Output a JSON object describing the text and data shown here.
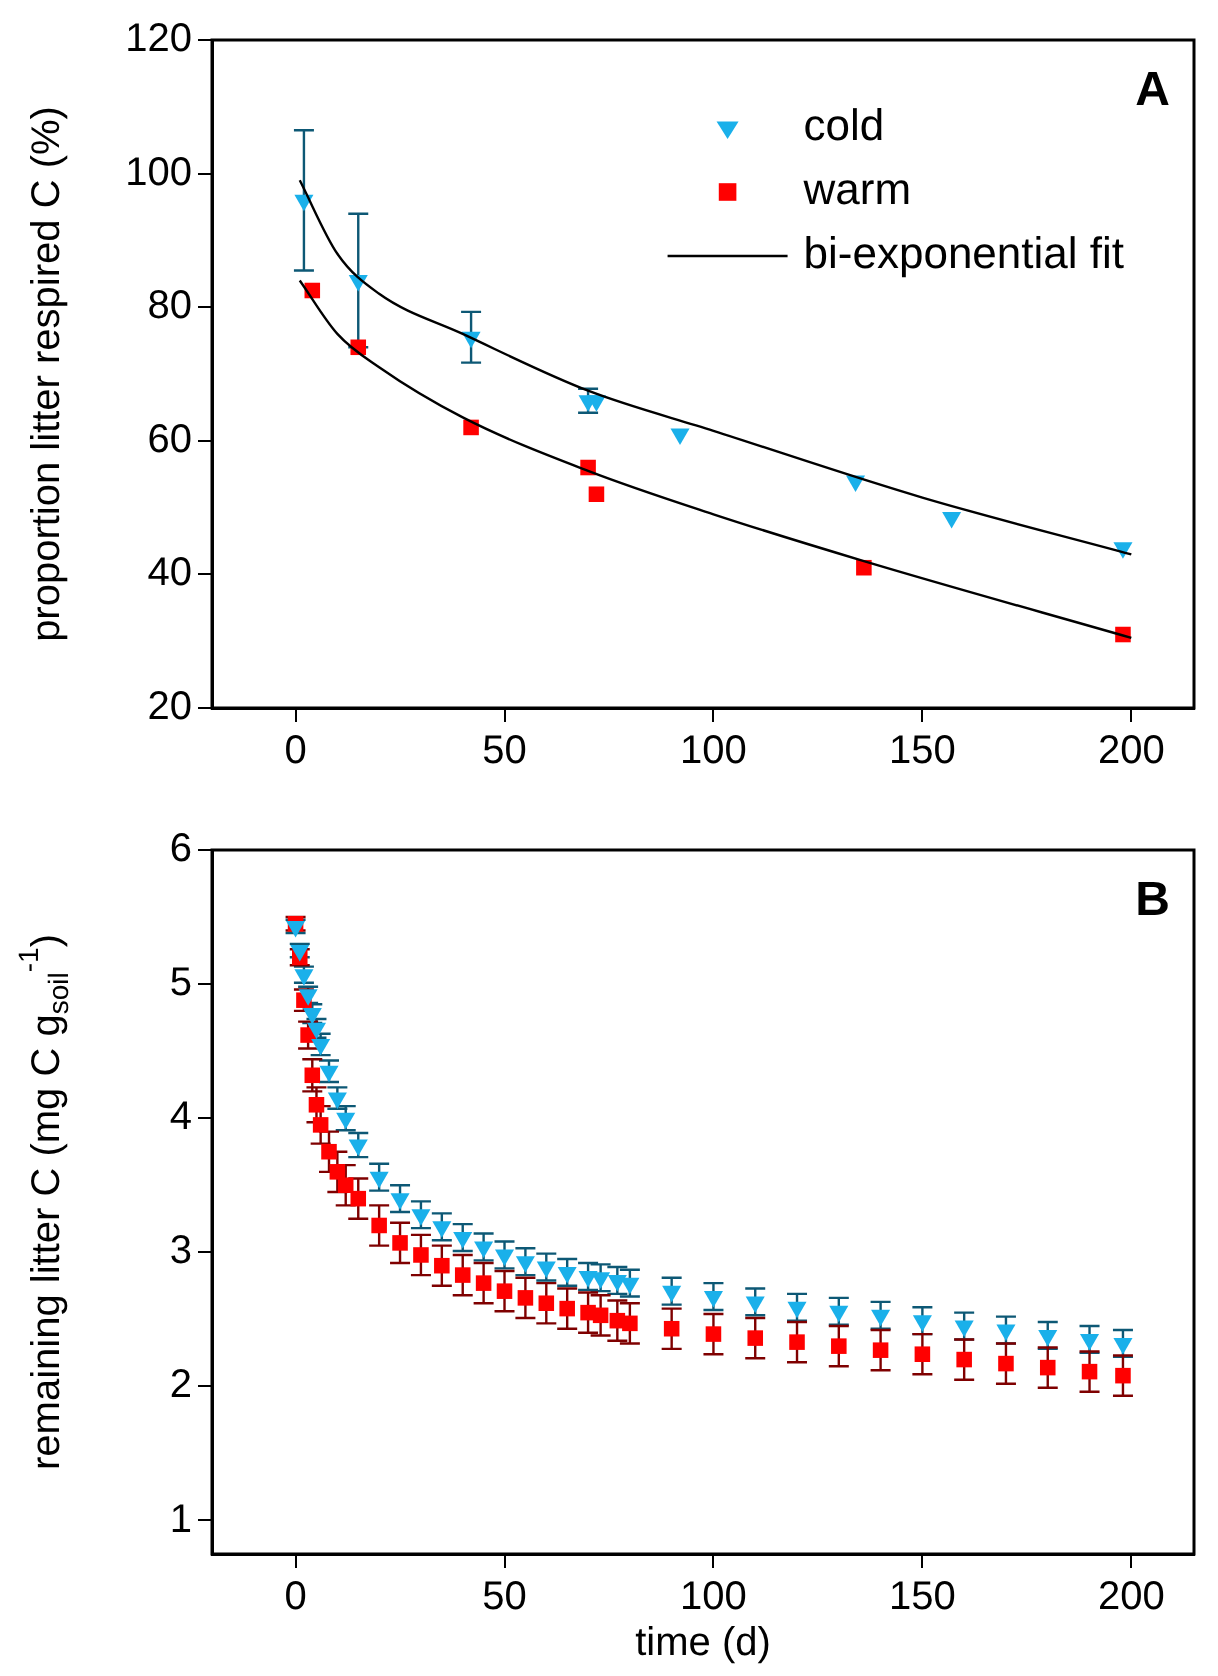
{
  "chart_data": [
    {
      "type": "scatter",
      "ylabel": "proportion litter respired C (%)",
      "annotations": [
        "A"
      ],
      "legend": "top right",
      "grid": false,
      "xlim": [
        -20,
        215
      ],
      "xticks": [
        0,
        50,
        100,
        150,
        200
      ],
      "ylim": [
        20,
        120
      ],
      "yticks": [
        20,
        40,
        60,
        80,
        100,
        120
      ],
      "series": [
        {
          "name": "cold",
          "color": "#1ab0ea",
          "marker": "triangle",
          "x": [
            2,
            15,
            42,
            70,
            72,
            92,
            134,
            157,
            198
          ],
          "values": [
            96,
            84,
            75.5,
            66,
            66,
            61,
            54,
            48.5,
            44
          ],
          "errors": [
            10.5,
            10,
            3.8,
            1.8,
            null,
            null,
            null,
            null,
            null
          ]
        },
        {
          "name": "warm",
          "color": "#ff0000",
          "marker": "square",
          "x": [
            4,
            15,
            42,
            70,
            72,
            136,
            198
          ],
          "values": [
            82.5,
            74,
            62,
            56,
            52,
            41,
            31
          ]
        },
        {
          "name": "bi-exponential fit",
          "type": "line",
          "color": "#000000",
          "marker": "none",
          "x": [
            1,
            10,
            20,
            40,
            70,
            100,
            150,
            200
          ],
          "values": [
            99,
            88,
            82,
            76,
            67.5,
            61.5,
            51.5,
            43
          ]
        },
        {
          "type": "line",
          "color": "#000000",
          "marker": "none",
          "x": [
            1,
            10,
            20,
            40,
            70,
            100,
            136,
            200
          ],
          "values": [
            84,
            76,
            71,
            63.5,
            55.5,
            49,
            42,
            30.5
          ]
        }
      ]
    },
    {
      "type": "scatter",
      "xlabel": "time (d)",
      "ylabel": "remaining litter C (mg C g$_{soil}$$^{-1}$)",
      "annotations": [
        "B"
      ],
      "grid": false,
      "xlim": [
        -20,
        215
      ],
      "xticks": [
        0,
        50,
        100,
        150,
        200
      ],
      "ylim": [
        0.75,
        6
      ],
      "yticks": [
        1,
        2,
        3,
        4,
        5,
        6
      ],
      "series": [
        {
          "color": "#1ab0ea",
          "marker": "triangle",
          "x": [
            0,
            1,
            2,
            3,
            4,
            5,
            6,
            8,
            10,
            12,
            15,
            20,
            25,
            30,
            35,
            40,
            45,
            50,
            55,
            60,
            65,
            70,
            73,
            77,
            80,
            90,
            100,
            110,
            120,
            130,
            140,
            150,
            160,
            170,
            180,
            190,
            198
          ],
          "values": [
            5.43,
            5.25,
            5.07,
            4.92,
            4.78,
            4.67,
            4.55,
            4.35,
            4.15,
            4.0,
            3.8,
            3.56,
            3.4,
            3.28,
            3.19,
            3.11,
            3.04,
            2.98,
            2.93,
            2.89,
            2.85,
            2.82,
            2.81,
            2.79,
            2.77,
            2.71,
            2.67,
            2.63,
            2.59,
            2.56,
            2.53,
            2.49,
            2.45,
            2.42,
            2.38,
            2.35,
            2.32
          ],
          "errors": [
            0.05,
            0.05,
            0.06,
            0.06,
            0.07,
            0.07,
            0.08,
            0.08,
            0.08,
            0.09,
            0.09,
            0.1,
            0.1,
            0.1,
            0.1,
            0.1,
            0.1,
            0.1,
            0.1,
            0.1,
            0.1,
            0.1,
            0.1,
            0.1,
            0.1,
            0.1,
            0.1,
            0.1,
            0.1,
            0.1,
            0.1,
            0.1,
            0.1,
            0.1,
            0.1,
            0.1,
            0.1
          ]
        },
        {
          "color": "#ff0000",
          "marker": "square",
          "x": [
            0,
            1,
            2,
            3,
            4,
            5,
            6,
            8,
            10,
            12,
            15,
            20,
            25,
            30,
            35,
            40,
            45,
            50,
            55,
            60,
            65,
            70,
            73,
            77,
            80,
            90,
            100,
            110,
            120,
            130,
            140,
            150,
            160,
            170,
            180,
            190,
            198
          ],
          "values": [
            5.45,
            5.2,
            4.88,
            4.62,
            4.32,
            4.1,
            3.95,
            3.75,
            3.6,
            3.5,
            3.4,
            3.2,
            3.07,
            2.98,
            2.9,
            2.83,
            2.77,
            2.71,
            2.66,
            2.62,
            2.58,
            2.55,
            2.53,
            2.49,
            2.47,
            2.43,
            2.39,
            2.36,
            2.33,
            2.3,
            2.27,
            2.24,
            2.2,
            2.17,
            2.14,
            2.11,
            2.08
          ],
          "errors": [
            0.05,
            0.06,
            0.08,
            0.1,
            0.12,
            0.13,
            0.14,
            0.15,
            0.15,
            0.15,
            0.15,
            0.15,
            0.15,
            0.15,
            0.15,
            0.15,
            0.15,
            0.15,
            0.15,
            0.15,
            0.15,
            0.15,
            0.15,
            0.15,
            0.15,
            0.15,
            0.15,
            0.15,
            0.15,
            0.15,
            0.15,
            0.15,
            0.15,
            0.15,
            0.15,
            0.15,
            0.15
          ]
        }
      ]
    }
  ]
}
